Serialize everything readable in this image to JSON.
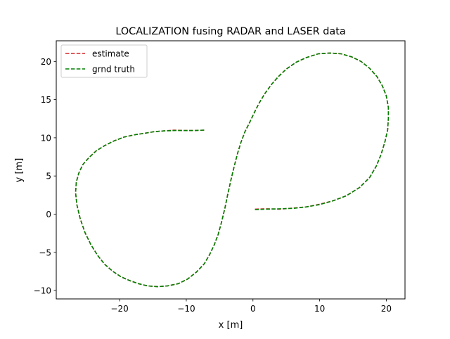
{
  "chart_data": {
    "type": "line",
    "title": "LOCALIZATION fusing RADAR and LASER data",
    "xlabel": "x [m]",
    "ylabel": "y [m]",
    "xlim": [
      -29.5,
      22.8
    ],
    "ylim": [
      -11.1,
      22.7
    ],
    "xticks": [
      -20,
      -10,
      0,
      10,
      20
    ],
    "yticks": [
      -10,
      -5,
      0,
      5,
      10,
      15,
      20
    ],
    "xtick_labels": [
      "−20",
      "−10",
      "0",
      "10",
      "20"
    ],
    "ytick_labels": [
      "−10",
      "−5",
      "0",
      "5",
      "10",
      "15",
      "20"
    ],
    "grid": false,
    "legend": "upper-left",
    "series": [
      {
        "name": "estimate",
        "color": "#d62728",
        "dash": "dashed",
        "x": [
          0.3,
          2,
          4,
          6,
          8,
          10,
          12,
          14,
          16,
          17.5,
          18.5,
          19.2,
          19.8,
          20.2,
          20.3,
          20.3,
          20.0,
          19.4,
          18.6,
          17.5,
          16.2,
          14.8,
          13.2,
          11.5,
          9.8,
          8.0,
          6.5,
          5.0,
          3.8,
          2.8,
          1.8,
          0.9,
          0.2,
          -0.5,
          -1.2,
          -1.8,
          -2.3,
          -2.8,
          -3.3,
          -3.8,
          -4.2,
          -4.7,
          -5.2,
          -5.8,
          -6.5,
          -7.3,
          -8.5,
          -9.8,
          -11.2,
          -12.8,
          -14.3,
          -15.8,
          -17.2,
          -18.5,
          -19.8,
          -21.0,
          -22.2,
          -23.3,
          -24.3,
          -25.2,
          -25.9,
          -26.4,
          -26.6,
          -26.5,
          -26.1,
          -25.5,
          -24.6,
          -23.5,
          -22.2,
          -20.8,
          -19.3,
          -17.7,
          -16.2,
          -14.8,
          -13.3,
          -11.8,
          -10.3,
          -8.8,
          -7.3
        ],
        "y": [
          0.65,
          0.7,
          0.65,
          0.8,
          0.95,
          1.3,
          1.75,
          2.4,
          3.5,
          4.8,
          6.3,
          7.8,
          9.5,
          11.0,
          12.5,
          14.0,
          15.5,
          16.8,
          18.0,
          19.1,
          20.0,
          20.6,
          21.0,
          21.1,
          21.0,
          20.5,
          19.9,
          19.0,
          18.0,
          17.0,
          15.8,
          14.5,
          13.3,
          12.0,
          10.8,
          9.4,
          8.0,
          6.3,
          4.5,
          2.5,
          0.8,
          -1.0,
          -2.6,
          -4.0,
          -5.3,
          -6.5,
          -7.6,
          -8.5,
          -9.1,
          -9.4,
          -9.5,
          -9.4,
          -9.1,
          -8.7,
          -8.2,
          -7.5,
          -6.6,
          -5.4,
          -4.0,
          -2.4,
          -0.6,
          1.2,
          2.8,
          4.2,
          5.4,
          6.5,
          7.4,
          8.3,
          9.0,
          9.6,
          10.1,
          10.4,
          10.6,
          10.8,
          10.9,
          11.0,
          10.95,
          10.95,
          11.0
        ]
      },
      {
        "name": "grnd truth",
        "color": "#008000",
        "dash": "dashed",
        "x": [
          0.3,
          2,
          4,
          6,
          8,
          10,
          12,
          14,
          16,
          17.5,
          18.5,
          19.2,
          19.8,
          20.2,
          20.3,
          20.3,
          20.0,
          19.4,
          18.6,
          17.5,
          16.2,
          14.8,
          13.2,
          11.5,
          9.8,
          8.0,
          6.5,
          5.0,
          3.8,
          2.8,
          1.8,
          0.9,
          0.2,
          -0.5,
          -1.2,
          -1.8,
          -2.3,
          -2.8,
          -3.3,
          -3.8,
          -4.2,
          -4.7,
          -5.2,
          -5.8,
          -6.5,
          -7.3,
          -8.5,
          -9.8,
          -11.2,
          -12.8,
          -14.3,
          -15.8,
          -17.2,
          -18.5,
          -19.8,
          -21.0,
          -22.2,
          -23.3,
          -24.3,
          -25.2,
          -25.9,
          -26.4,
          -26.6,
          -26.5,
          -26.1,
          -25.5,
          -24.6,
          -23.5,
          -22.2,
          -20.8,
          -19.3,
          -17.7,
          -16.2,
          -14.8,
          -13.3,
          -11.8,
          -10.3,
          -8.8,
          -7.3
        ],
        "y": [
          0.6,
          0.65,
          0.7,
          0.75,
          0.95,
          1.25,
          1.75,
          2.4,
          3.5,
          4.8,
          6.3,
          7.8,
          9.5,
          11.0,
          12.5,
          14.0,
          15.5,
          16.8,
          18.0,
          19.1,
          20.0,
          20.6,
          21.0,
          21.1,
          21.0,
          20.5,
          19.9,
          19.0,
          18.0,
          17.0,
          15.8,
          14.5,
          13.3,
          12.0,
          10.8,
          9.4,
          8.0,
          6.3,
          4.5,
          2.5,
          0.8,
          -1.0,
          -2.6,
          -4.0,
          -5.3,
          -6.5,
          -7.6,
          -8.5,
          -9.1,
          -9.4,
          -9.5,
          -9.4,
          -9.1,
          -8.7,
          -8.2,
          -7.5,
          -6.6,
          -5.4,
          -4.0,
          -2.4,
          -0.6,
          1.2,
          2.8,
          4.2,
          5.4,
          6.5,
          7.4,
          8.3,
          9.0,
          9.6,
          10.1,
          10.4,
          10.6,
          10.8,
          10.9,
          10.95,
          10.95,
          10.95,
          11.0
        ]
      }
    ]
  }
}
